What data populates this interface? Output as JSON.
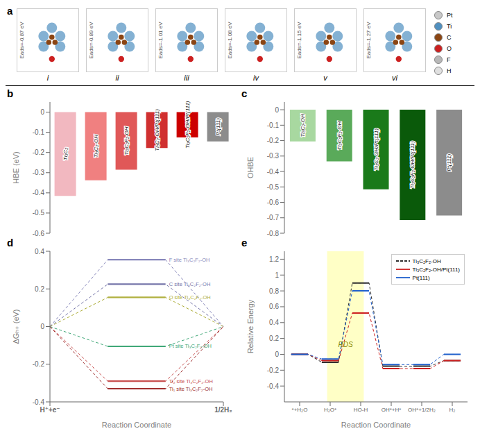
{
  "chart_data": [
    {
      "type": "schematic",
      "title": "a",
      "categories": [
        "i",
        "ii",
        "iii",
        "iv",
        "v",
        "vi"
      ],
      "annotations": [
        "Eads=-0.87 eV",
        "Eads=-0.89 eV",
        "Eads=-1.01 eV",
        "Eads=-1.08 eV",
        "Eads=-1.15 eV",
        "Eads=-1.27 eV"
      ],
      "series": [
        {
          "name": "Pt",
          "color": "#c8c8c8"
        },
        {
          "name": "Ti",
          "color": "#5090c0"
        },
        {
          "name": "C",
          "color": "#8B4513"
        },
        {
          "name": "O",
          "color": "#cc2020"
        },
        {
          "name": "F",
          "color": "#b8b8b8"
        },
        {
          "name": "H",
          "color": "#e0e0e0"
        }
      ]
    },
    {
      "type": "bar",
      "title": "b",
      "categories": [
        "Ti₃C₂",
        "Ti₃C₂-OH",
        "Ti₃C₂F₂-OH",
        "Ti₃C₂-OH/Pt(111)",
        "Ti₃C₂F₂-OH/Pt(111)",
        "Pt(111)"
      ],
      "values": [
        -0.415,
        -0.338,
        -0.285,
        -0.178,
        -0.125,
        -0.145
      ],
      "colors": [
        "#f2b8c0",
        "#f08080",
        "#e05858",
        "#d03030",
        "#cc0000",
        "#8c8c8c"
      ],
      "y_label": "HBE (eV)",
      "ylim": [
        -0.6,
        0.05
      ],
      "yticks": [
        -0.6,
        -0.5,
        -0.4,
        -0.3,
        -0.2,
        -0.1,
        0
      ],
      "tick_labels": "y"
    },
    {
      "type": "bar",
      "title": "c",
      "categories": [
        "Ti₃C₂-OH",
        "Ti₃C₂F₂-OH",
        "Ti₃C₂-OH/Pt(111)",
        "Ti₃C₂F₂-OH/Pt(111)",
        "Pt(111)"
      ],
      "values": [
        -0.205,
        -0.335,
        -0.515,
        -0.715,
        -0.685
      ],
      "colors": [
        "#a8d8a0",
        "#5aaa5a",
        "#1a7a1a",
        "#0a5a0a",
        "#8c8c8c"
      ],
      "y_label": "OHBE",
      "ylim": [
        -0.8,
        0.05
      ],
      "yticks": [
        -0.8,
        -0.7,
        -0.6,
        -0.5,
        -0.4,
        -0.3,
        -0.2,
        -0.1,
        0
      ],
      "tick_labels": "y"
    },
    {
      "type": "line",
      "title": "d",
      "categories": [
        "H⁺+e⁻",
        null,
        null,
        "1/2H₂"
      ],
      "series": [
        {
          "name": "F site Ti₃C₂F₂-OH",
          "color": "#8888bb",
          "values": [
            0.0,
            0.355,
            0.355,
            0.0
          ]
        },
        {
          "name": "C site Ti₃C₂F₂-OH",
          "color": "#7777aa",
          "values": [
            0.0,
            0.225,
            0.225,
            0.0
          ]
        },
        {
          "name": "O site Ti₃C₂F₂-OH",
          "color": "#b0b040",
          "values": [
            0.0,
            0.155,
            0.155,
            0.0
          ]
        },
        {
          "name": "Pt site Ti₃C₂F₂-OH",
          "color": "#40a878",
          "values": [
            0.0,
            -0.105,
            -0.105,
            0.0
          ]
        },
        {
          "name": "Ti₂ site Ti₃C₂F₂-OH",
          "color": "#c85050",
          "values": [
            0.0,
            -0.29,
            -0.29,
            0.0
          ]
        },
        {
          "name": "Ti₁ site Ti₃C₂F₂-OH",
          "color": "#a03030",
          "values": [
            0.0,
            -0.33,
            -0.33,
            0.0
          ]
        }
      ],
      "x_label": "Reaction Coordinate",
      "y_label": "ΔGₕ₊ (eV)",
      "ylim": [
        -0.4,
        0.4
      ],
      "yticks": [
        -0.4,
        -0.2,
        0,
        0.2,
        0.4
      ]
    },
    {
      "type": "line",
      "title": "e",
      "categories": [
        "*+H₂O",
        "H₂O*",
        "HO-H",
        "OH*+H*",
        "OH*+1/2H₂",
        "H₂"
      ],
      "series": [
        {
          "name": "Ti₃C₂F₂-OH",
          "color": "#303030",
          "line_style": "dashed",
          "values": [
            0.0,
            -0.1,
            0.9,
            -0.15,
            -0.15,
            -0.08
          ]
        },
        {
          "name": "Ti₃C₂F₂-OH/Pt(111)",
          "color": "#cc2020",
          "line_style": "solid",
          "values": [
            0.0,
            -0.08,
            0.52,
            -0.18,
            -0.18,
            -0.08
          ]
        },
        {
          "name": "Pt(111)",
          "color": "#2060cc",
          "line_style": "solid",
          "values": [
            0.0,
            -0.06,
            0.8,
            -0.13,
            -0.13,
            0.0
          ]
        }
      ],
      "x_label": "Reaction Coordinate",
      "y_label": "Relative Energy",
      "ylim": [
        -0.6,
        1.3
      ],
      "yticks": [
        -0.4,
        -0.2,
        0.0,
        0.2,
        0.4,
        0.6,
        0.8,
        1.0,
        1.2
      ],
      "legend": "upper right",
      "annotations": [
        {
          "text": "RDS",
          "from": "H₂O*",
          "to": "HO-H",
          "y": 0.12,
          "color": "#ffffa0"
        }
      ]
    }
  ]
}
